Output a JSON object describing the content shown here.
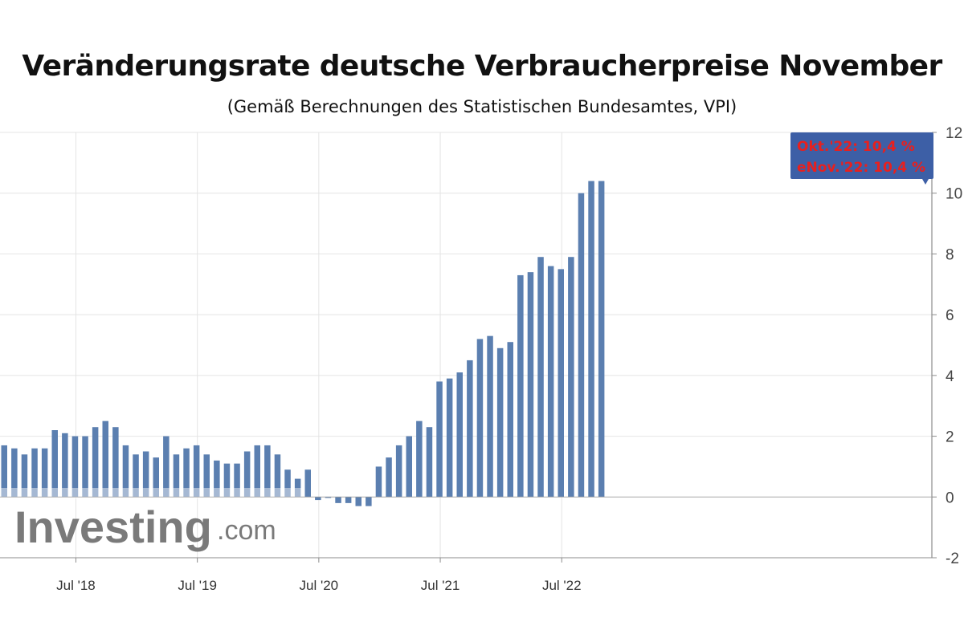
{
  "header": {
    "title": "Veränderungsrate deutsche Verbraucherpreise November",
    "subtitle": "(Gemäß Berechnungen des Statistischen Bundesamtes, VPI)"
  },
  "watermark": {
    "brand": "Investing",
    "suffix": ".com"
  },
  "annotation": {
    "line1": "Okt.'22: 10,4 %",
    "line2": "eNov.'22: 10,4 %"
  },
  "colors": {
    "bar": "#5b7fb0",
    "bar_faded": "#b6c4da",
    "grid": "#e4e4e4",
    "annotation_bg": "#3d5fa6",
    "annotation_text": "#e8201e"
  },
  "chart_data": {
    "type": "bar",
    "title": "Veränderungsrate deutsche Verbraucherpreise November",
    "subtitle": "(Gemäß Berechnungen des Statistischen Bundesamtes, VPI)",
    "y_axis_position": "right",
    "ylim": [
      -2,
      12
    ],
    "y_ticks": [
      -2,
      0,
      2,
      4,
      6,
      8,
      10,
      12
    ],
    "x_tick_labels": [
      {
        "label": "Jul '18",
        "at": "2018-07"
      },
      {
        "label": "Jul '19",
        "at": "2019-07"
      },
      {
        "label": "Jul '20",
        "at": "2020-07"
      },
      {
        "label": "Jul '21",
        "at": "2021-07"
      },
      {
        "label": "Jul '22",
        "at": "2022-07"
      }
    ],
    "grid": true,
    "categories": [
      "2017-12",
      "2018-01",
      "2018-02",
      "2018-03",
      "2018-04",
      "2018-05",
      "2018-06",
      "2018-07",
      "2018-08",
      "2018-09",
      "2018-10",
      "2018-11",
      "2018-12",
      "2019-01",
      "2019-02",
      "2019-03",
      "2019-04",
      "2019-05",
      "2019-06",
      "2019-07",
      "2019-08",
      "2019-09",
      "2019-10",
      "2019-11",
      "2019-12",
      "2020-01",
      "2020-02",
      "2020-03",
      "2020-04",
      "2020-05",
      "2020-06",
      "2020-07",
      "2020-08",
      "2020-09",
      "2020-10",
      "2020-11",
      "2020-12",
      "2021-01",
      "2021-02",
      "2021-03",
      "2021-04",
      "2021-05",
      "2021-06",
      "2021-07",
      "2021-08",
      "2021-09",
      "2021-10",
      "2021-11",
      "2021-12",
      "2022-01",
      "2022-02",
      "2022-03",
      "2022-04",
      "2022-05",
      "2022-06",
      "2022-07",
      "2022-08",
      "2022-09",
      "2022-10",
      "2022-11"
    ],
    "values": [
      1.7,
      1.6,
      1.4,
      1.6,
      1.6,
      2.2,
      2.1,
      2.0,
      2.0,
      2.3,
      2.5,
      2.3,
      1.7,
      1.4,
      1.5,
      1.3,
      2.0,
      1.4,
      1.6,
      1.7,
      1.4,
      1.2,
      1.1,
      1.1,
      1.5,
      1.7,
      1.7,
      1.4,
      0.9,
      0.6,
      0.9,
      -0.1,
      0.0,
      -0.2,
      -0.2,
      -0.3,
      -0.3,
      1.0,
      1.3,
      1.7,
      2.0,
      2.5,
      2.3,
      3.8,
      3.9,
      4.1,
      4.5,
      5.2,
      5.3,
      4.9,
      5.1,
      7.3,
      7.4,
      7.9,
      7.6,
      7.5,
      7.9,
      10.0,
      10.4,
      10.4
    ]
  }
}
